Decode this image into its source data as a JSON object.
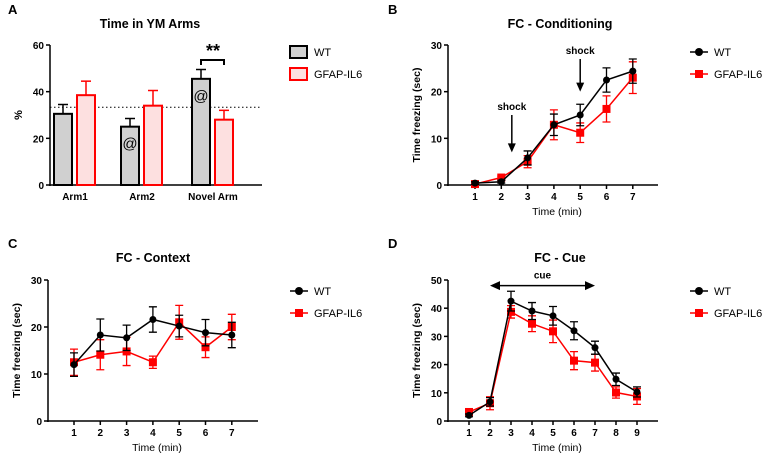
{
  "colors": {
    "wt": "#000000",
    "gfap": "#ff0000",
    "wt_fill": "#d0d0d0",
    "gfap_fill": "#fde0e0"
  },
  "chart_data": [
    {
      "panel": "A",
      "type": "bar",
      "title": "Time in YM Arms",
      "xlabel": "",
      "ylabel": "%",
      "ylim": [
        0,
        60
      ],
      "yticks": [
        0,
        20,
        40,
        60
      ],
      "categories": [
        "Arm1",
        "Arm2",
        "Novel Arm"
      ],
      "chance_line": 33.3,
      "series": [
        {
          "name": "WT",
          "values": [
            30.5,
            25,
            45.5
          ],
          "errors": [
            4,
            3.5,
            4
          ],
          "annotations": [
            "",
            "@",
            "@"
          ]
        },
        {
          "name": "GFAP-IL6",
          "values": [
            38.5,
            34,
            28
          ],
          "errors": [
            6,
            6.5,
            4
          ],
          "annotations": [
            "",
            "",
            ""
          ]
        }
      ],
      "significance": {
        "category": "Novel Arm",
        "label": "**"
      }
    },
    {
      "panel": "B",
      "type": "line",
      "title": "FC - Conditioning",
      "xlabel": "Time (min)",
      "ylabel": "Time freezing (sec)",
      "ylim": [
        0,
        30
      ],
      "yticks": [
        0,
        10,
        20,
        30
      ],
      "x": [
        1,
        2,
        3,
        4,
        5,
        6,
        7
      ],
      "xlim": [
        0,
        8
      ],
      "series": [
        {
          "name": "WT",
          "values": [
            0.4,
            0.7,
            5.8,
            12.9,
            15,
            22.5,
            24.4
          ],
          "errors": [
            0.3,
            0.3,
            1.5,
            2.3,
            2.3,
            2.6,
            2.6
          ]
        },
        {
          "name": "GFAP-IL6",
          "values": [
            0.2,
            1.6,
            5,
            12.9,
            11.2,
            16.3,
            23
          ],
          "errors": [
            0.2,
            0.3,
            1.3,
            3.2,
            2.1,
            2.8,
            3.4
          ]
        }
      ],
      "annotations": [
        {
          "label": "shock",
          "x": 2.4,
          "y_from": 15,
          "y_to": 7
        },
        {
          "label": "shock",
          "x": 5,
          "y_from": 27,
          "y_to": 20
        }
      ]
    },
    {
      "panel": "C",
      "type": "line",
      "title": "FC - Context",
      "xlabel": "Time (min)",
      "ylabel": "Time freezing (sec)",
      "ylim": [
        0,
        30
      ],
      "yticks": [
        0,
        10,
        20,
        30
      ],
      "x": [
        1,
        2,
        3,
        4,
        5,
        6,
        7
      ],
      "xlim": [
        0,
        8
      ],
      "series": [
        {
          "name": "WT",
          "values": [
            12,
            18.3,
            17.7,
            21.6,
            20.2,
            18.8,
            18.3
          ],
          "errors": [
            2.5,
            3.4,
            2.7,
            2.7,
            2.3,
            2.8,
            2.7
          ]
        },
        {
          "name": "GFAP-IL6",
          "values": [
            12.5,
            14.1,
            14.8,
            12.5,
            21,
            15.7,
            20
          ],
          "errors": [
            2.8,
            3.2,
            3,
            1.3,
            3.6,
            2.2,
            2.7
          ]
        }
      ],
      "annotations": []
    },
    {
      "panel": "D",
      "type": "line",
      "title": "FC - Cue",
      "xlabel": "Time (min)",
      "ylabel": "Time freezing (sec)",
      "ylim": [
        0,
        50
      ],
      "yticks": [
        0,
        10,
        20,
        30,
        40,
        50
      ],
      "x": [
        1,
        2,
        3,
        4,
        5,
        6,
        7,
        8,
        9
      ],
      "xlim": [
        0,
        10
      ],
      "series": [
        {
          "name": "WT",
          "values": [
            2,
            6.8,
            42.5,
            39,
            37.3,
            32,
            26,
            14.8,
            10.3
          ],
          "errors": [
            0.5,
            1.5,
            3.5,
            3,
            3.3,
            3.2,
            2.3,
            2.2,
            1.8
          ]
        },
        {
          "name": "GFAP-IL6",
          "values": [
            3.2,
            6.3,
            38.7,
            34.5,
            31.8,
            21.4,
            20.7,
            10.1,
            8.7
          ],
          "errors": [
            0.5,
            2.3,
            2.2,
            2.8,
            4,
            3.2,
            3,
            2,
            2.8
          ]
        }
      ],
      "cue": {
        "label": "cue",
        "x_from": 2,
        "x_to": 7,
        "y": 48
      }
    }
  ]
}
